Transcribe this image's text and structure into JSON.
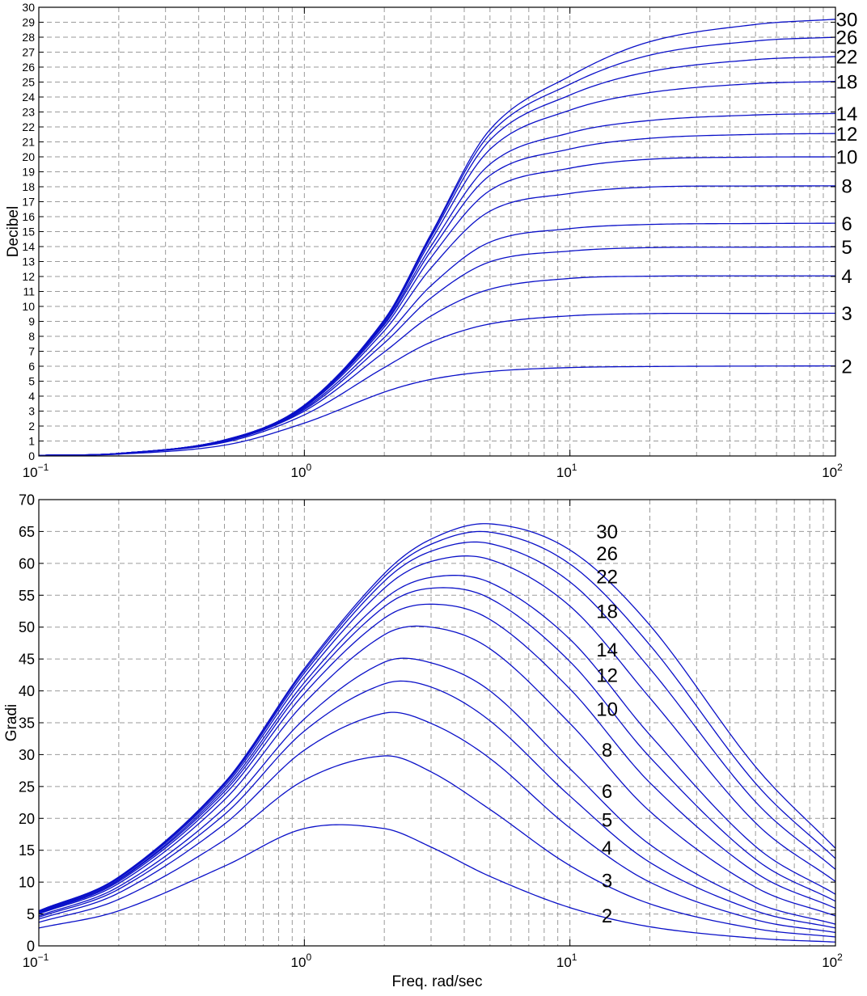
{
  "chart_data": [
    {
      "type": "line",
      "title": "",
      "xlabel": "",
      "ylabel": "Decibel",
      "xscale": "log",
      "xlim": [
        0.1,
        100
      ],
      "ylim": [
        0,
        30
      ],
      "grid": true,
      "x_ticks": [
        {
          "base": "10",
          "exp": "−1"
        },
        {
          "base": "10",
          "exp": "0"
        },
        {
          "base": "10",
          "exp": "1"
        },
        {
          "base": "10",
          "exp": "2"
        }
      ],
      "y_ticks": [
        "0",
        "1",
        "2",
        "3",
        "4",
        "5",
        "6",
        "7",
        "8",
        "9",
        "10",
        "11",
        "12",
        "13",
        "14",
        "15",
        "16",
        "17",
        "18",
        "19",
        "20",
        "21",
        "22",
        "23",
        "24",
        "25",
        "26",
        "27",
        "28",
        "29",
        "30"
      ],
      "x": [
        0.1,
        0.2,
        0.5,
        1,
        2,
        3,
        5,
        10,
        20,
        50,
        100
      ],
      "series": [
        {
          "name": "2",
          "values": [
            0.03,
            0.12,
            0.72,
            2.2,
            4.27,
            5.12,
            5.65,
            5.91,
            5.98,
            6.01,
            6.02
          ]
        },
        {
          "name": "3",
          "values": [
            0.04,
            0.16,
            0.91,
            2.75,
            5.91,
            7.61,
            8.83,
            9.37,
            9.52,
            9.53,
            9.54
          ]
        },
        {
          "name": "4",
          "values": [
            0.04,
            0.16,
            0.97,
            3.0,
            6.95,
            9.36,
            11.15,
            11.87,
            12.02,
            12.04,
            12.04
          ]
        },
        {
          "name": "5",
          "values": [
            0.04,
            0.17,
            1.0,
            3.1,
            7.55,
            10.57,
            12.98,
            13.7,
            13.93,
            13.96,
            13.98
          ]
        },
        {
          "name": "6",
          "values": [
            0.04,
            0.17,
            1.02,
            3.18,
            7.92,
            11.39,
            14.3,
            15.2,
            15.48,
            15.54,
            15.56
          ]
        },
        {
          "name": "8",
          "values": [
            0.04,
            0.17,
            1.04,
            3.26,
            8.37,
            12.57,
            16.37,
            17.55,
            17.98,
            18.05,
            18.06
          ]
        },
        {
          "name": "10",
          "values": [
            0.04,
            0.17,
            1.05,
            3.31,
            8.62,
            13.27,
            17.75,
            19.24,
            19.84,
            19.98,
            20.0
          ]
        },
        {
          "name": "12",
          "values": [
            0.04,
            0.17,
            1.05,
            3.34,
            8.78,
            13.72,
            18.76,
            20.52,
            21.24,
            21.5,
            21.56
          ]
        },
        {
          "name": "14",
          "values": [
            0.04,
            0.17,
            1.06,
            3.36,
            8.88,
            14.03,
            19.51,
            21.6,
            22.43,
            22.8,
            22.9
          ]
        },
        {
          "name": "18",
          "values": [
            0.04,
            0.17,
            1.06,
            3.38,
            8.99,
            14.41,
            20.5,
            23.12,
            24.3,
            24.9,
            25.04
          ]
        },
        {
          "name": "22",
          "values": [
            0.04,
            0.17,
            1.06,
            3.39,
            9.06,
            14.63,
            21.12,
            24.13,
            25.7,
            26.5,
            26.7
          ]
        },
        {
          "name": "26",
          "values": [
            0.04,
            0.17,
            1.07,
            3.39,
            9.09,
            14.76,
            21.53,
            24.85,
            26.8,
            27.75,
            28.0
          ]
        },
        {
          "name": "30",
          "values": [
            0.04,
            0.17,
            1.07,
            3.4,
            9.12,
            14.85,
            21.82,
            25.4,
            27.7,
            28.85,
            29.2
          ]
        }
      ]
    },
    {
      "type": "line",
      "title": "",
      "xlabel": "Freq. rad/sec",
      "ylabel": "Gradi",
      "xscale": "log",
      "xlim": [
        0.1,
        100
      ],
      "ylim": [
        0,
        70
      ],
      "grid": true,
      "x_ticks": [
        {
          "base": "10",
          "exp": "−1"
        },
        {
          "base": "10",
          "exp": "0"
        },
        {
          "base": "10",
          "exp": "1"
        },
        {
          "base": "10",
          "exp": "2"
        }
      ],
      "y_ticks": [
        "0",
        "5",
        "10",
        "15",
        "20",
        "25",
        "30",
        "35",
        "40",
        "45",
        "50",
        "55",
        "60",
        "65",
        "70"
      ],
      "x": [
        0.1,
        0.2,
        0.5,
        1,
        2,
        3,
        5,
        10,
        20,
        50,
        100
      ],
      "series": [
        {
          "name": "2",
          "values": [
            2.8,
            5.5,
            12.5,
            18.4,
            18.4,
            15.5,
            10.9,
            6.0,
            3.0,
            1.2,
            0.6
          ]
        },
        {
          "name": "3",
          "values": [
            3.7,
            7.3,
            16.6,
            26.0,
            29.8,
            27.3,
            21.4,
            12.6,
            6.6,
            2.7,
            1.4
          ]
        },
        {
          "name": "4",
          "values": [
            4.2,
            8.3,
            19.1,
            30.7,
            36.5,
            34.9,
            29.4,
            18.5,
            10.0,
            4.1,
            2.1
          ]
        },
        {
          "name": "5",
          "values": [
            4.5,
            8.9,
            20.6,
            33.7,
            41.1,
            40.6,
            35.3,
            23.5,
            13.1,
            5.5,
            2.8
          ]
        },
        {
          "name": "6",
          "values": [
            4.7,
            9.3,
            21.6,
            35.6,
            44.5,
            44.4,
            40.0,
            27.8,
            15.9,
            6.8,
            3.4
          ]
        },
        {
          "name": "8",
          "values": [
            5.0,
            9.8,
            22.9,
            38.1,
            48.8,
            50.0,
            46.6,
            34.9,
            21.1,
            9.2,
            4.7
          ]
        },
        {
          "name": "10",
          "values": [
            5.1,
            10.1,
            23.7,
            39.6,
            51.4,
            53.6,
            51.2,
            40.3,
            25.6,
            11.5,
            5.9
          ]
        },
        {
          "name": "12",
          "values": [
            5.2,
            10.3,
            24.2,
            40.6,
            53.2,
            56.1,
            54.5,
            44.6,
            29.6,
            13.6,
            7.0
          ]
        },
        {
          "name": "14",
          "values": [
            5.3,
            10.4,
            24.6,
            41.3,
            54.4,
            57.8,
            57.0,
            48.1,
            33.1,
            15.6,
            8.1
          ]
        },
        {
          "name": "18",
          "values": [
            5.4,
            10.6,
            25.0,
            42.2,
            56.1,
            60.3,
            60.6,
            53.3,
            38.9,
            19.3,
            10.1
          ]
        },
        {
          "name": "22",
          "values": [
            5.4,
            10.7,
            25.3,
            42.8,
            57.2,
            61.9,
            63.1,
            57.1,
            43.5,
            22.6,
            12.0
          ]
        },
        {
          "name": "26",
          "values": [
            5.5,
            10.8,
            25.5,
            43.2,
            57.9,
            63.0,
            64.9,
            59.9,
            47.2,
            25.5,
            13.7
          ]
        },
        {
          "name": "30",
          "values": [
            5.5,
            10.8,
            25.6,
            43.5,
            58.4,
            63.8,
            66.2,
            62.1,
            50.3,
            28.1,
            15.3
          ]
        }
      ]
    }
  ]
}
